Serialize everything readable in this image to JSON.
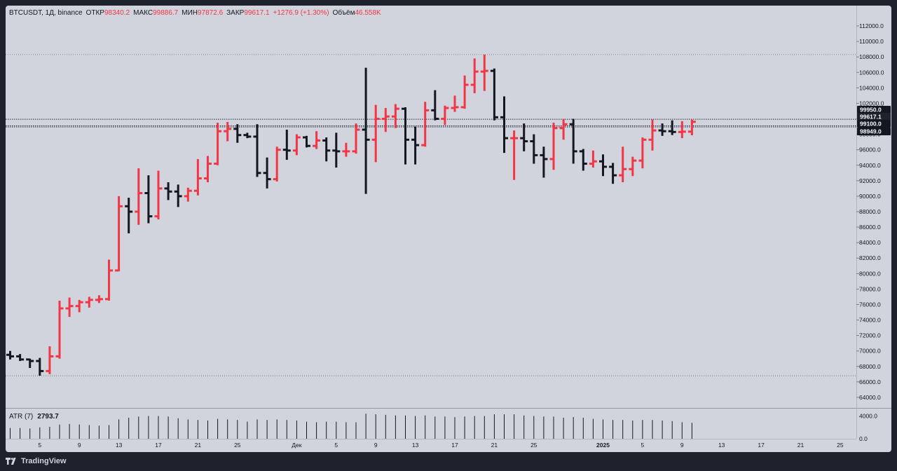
{
  "legend": {
    "symbol": "BTCUSDT, 1Д, binance",
    "open_label": "ОТКР",
    "open": "98340.2",
    "high_label": "МАКС",
    "high": "99886.7",
    "low_label": "МИН",
    "low": "97872.6",
    "close_label": "ЗАКР",
    "close": "99617.1",
    "change": "+1276.9 (+1.30%)",
    "volume_label": "Объём",
    "volume": "46.558K"
  },
  "atr": {
    "label": "ATR (7)",
    "value": "2793.7"
  },
  "footer": {
    "brand": "TradingView",
    "logo_icon": "tradingview-logo-icon"
  },
  "colors": {
    "up": "#f23645",
    "down": "#131722",
    "bg": "#d1d4dc",
    "frame": "#1e222d"
  },
  "price_labels": [
    {
      "text": "99950.0",
      "value": 99950
    },
    {
      "text": "99617.1",
      "value": 99617.1
    },
    {
      "text": "99100.0",
      "value": 99100
    },
    {
      "text": "98949.0",
      "value": 98949
    }
  ],
  "chart_data": {
    "type": "ohlc",
    "ylim": [
      63000,
      113000
    ],
    "y_ticks": [
      "64000.0",
      "66000.0",
      "68000.0",
      "70000.0",
      "72000.0",
      "74000.0",
      "76000.0",
      "78000.0",
      "80000.0",
      "82000.0",
      "84000.0",
      "86000.0",
      "88000.0",
      "90000.0",
      "92000.0",
      "94000.0",
      "96000.0",
      "98000.0",
      "100000.0",
      "102000.0",
      "104000.0",
      "106000.0",
      "108000.0",
      "110000.0",
      "112000.0"
    ],
    "x_ticks": [
      {
        "label": "5",
        "index": 3
      },
      {
        "label": "9",
        "index": 7
      },
      {
        "label": "13",
        "index": 11
      },
      {
        "label": "17",
        "index": 15
      },
      {
        "label": "21",
        "index": 19
      },
      {
        "label": "25",
        "index": 23
      },
      {
        "label": "Дек",
        "index": 29
      },
      {
        "label": "5",
        "index": 33
      },
      {
        "label": "9",
        "index": 37
      },
      {
        "label": "13",
        "index": 41
      },
      {
        "label": "17",
        "index": 45
      },
      {
        "label": "21",
        "index": 49
      },
      {
        "label": "25",
        "index": 53
      },
      {
        "label": "2025",
        "index": 60
      },
      {
        "label": "5",
        "index": 64
      },
      {
        "label": "9",
        "index": 68
      },
      {
        "label": "13",
        "index": 72
      },
      {
        "label": "17",
        "index": 76
      },
      {
        "label": "21",
        "index": 80
      },
      {
        "label": "25",
        "index": 84
      }
    ],
    "hlines": [
      108300,
      99950,
      99100,
      98949,
      66800
    ],
    "candles": [
      [
        69500,
        70000,
        68900,
        69300
      ],
      [
        69300,
        69600,
        68700,
        68900
      ],
      [
        68900,
        69000,
        67800,
        68700
      ],
      [
        68700,
        69100,
        66800,
        67400
      ],
      [
        67400,
        70600,
        67000,
        69300
      ],
      [
        69300,
        76500,
        69000,
        75500
      ],
      [
        75500,
        76900,
        74400,
        75800
      ],
      [
        75800,
        76600,
        75000,
        76300
      ],
      [
        76300,
        77000,
        75600,
        76600
      ],
      [
        76600,
        77200,
        76200,
        76700
      ],
      [
        76700,
        81800,
        76500,
        80400
      ],
      [
        80400,
        90000,
        80300,
        88700
      ],
      [
        88700,
        89800,
        85200,
        88000
      ],
      [
        88000,
        93600,
        86300,
        90400
      ],
      [
        90400,
        92700,
        86500,
        87400
      ],
      [
        87400,
        93300,
        87000,
        91000
      ],
      [
        91000,
        91800,
        89500,
        90600
      ],
      [
        90600,
        91500,
        88600,
        90000
      ],
      [
        90000,
        91100,
        89300,
        90700
      ],
      [
        90700,
        94800,
        90100,
        92300
      ],
      [
        92300,
        95200,
        91800,
        94200
      ],
      [
        94200,
        99500,
        94000,
        98400
      ],
      [
        98400,
        99600,
        97100,
        98700
      ],
      [
        98700,
        99300,
        96900,
        97900
      ],
      [
        97900,
        98200,
        97500,
        97700
      ],
      [
        97700,
        99300,
        92500,
        93000
      ],
      [
        93000,
        95000,
        91000,
        92200
      ],
      [
        92200,
        96400,
        91900,
        96000
      ],
      [
        96000,
        98600,
        94700,
        95900
      ],
      [
        95900,
        98000,
        95300,
        97600
      ],
      [
        97600,
        97800,
        96300,
        96500
      ],
      [
        96500,
        98400,
        96100,
        97200
      ],
      [
        97200,
        97600,
        94500,
        95900
      ],
      [
        95900,
        98200,
        93700,
        95800
      ],
      [
        95800,
        96900,
        95100,
        95800
      ],
      [
        95800,
        99400,
        95500,
        98600
      ],
      [
        98600,
        106600,
        90300,
        97300
      ],
      [
        97300,
        101800,
        94400,
        100000
      ],
      [
        100000,
        101400,
        98300,
        100300
      ],
      [
        100300,
        101900,
        98800,
        101300
      ],
      [
        101300,
        101500,
        94100,
        97300
      ],
      [
        97300,
        99000,
        94100,
        96600
      ],
      [
        96600,
        102200,
        96400,
        101100
      ],
      [
        101100,
        103700,
        99800,
        100000
      ],
      [
        100000,
        101700,
        99200,
        101400
      ],
      [
        101400,
        103000,
        100900,
        101500
      ],
      [
        101500,
        105600,
        101300,
        104400
      ],
      [
        104400,
        107800,
        103300,
        106100
      ],
      [
        106100,
        108300,
        103600,
        106200
      ],
      [
        106200,
        106500,
        99800,
        100200
      ],
      [
        100200,
        102900,
        95600,
        97500
      ],
      [
        97500,
        98500,
        92100,
        97500
      ],
      [
        97500,
        99400,
        95800,
        97100
      ],
      [
        97100,
        98000,
        94200,
        95300
      ],
      [
        95300,
        96400,
        92400,
        94800
      ],
      [
        94800,
        99500,
        93400,
        98800
      ],
      [
        98800,
        100000,
        97300,
        99300
      ],
      [
        99300,
        100000,
        94200,
        95800
      ],
      [
        95800,
        96100,
        93300,
        94200
      ],
      [
        94200,
        95900,
        93700,
        94500
      ],
      [
        94500,
        95400,
        92600,
        93800
      ],
      [
        93800,
        94300,
        91600,
        92700
      ],
      [
        92700,
        96400,
        91800,
        93500
      ],
      [
        93500,
        95100,
        92600,
        94600
      ],
      [
        94600,
        97600,
        93600,
        97300
      ],
      [
        97300,
        99900,
        95900,
        98500
      ],
      [
        98500,
        99400,
        97800,
        98400
      ],
      [
        98400,
        99800,
        97900,
        98300
      ],
      [
        98300,
        99700,
        97500,
        98340
      ],
      [
        98340,
        99887,
        97873,
        99617
      ]
    ],
    "atr_ylim": [
      0,
      4800
    ],
    "atr_ticks": [
      "4000.0",
      "0.0"
    ],
    "atr_values": [
      1900,
      1900,
      1800,
      2000,
      2100,
      2500,
      2600,
      2500,
      2400,
      2300,
      2400,
      3400,
      3700,
      3900,
      4000,
      4000,
      3900,
      3600,
      3400,
      3300,
      3200,
      3500,
      3400,
      3300,
      3000,
      3400,
      3300,
      3400,
      3300,
      3200,
      3000,
      2900,
      3000,
      3000,
      2900,
      2900,
      4400,
      4300,
      4200,
      4100,
      4100,
      4000,
      4100,
      3900,
      3900,
      3800,
      3900,
      4000,
      4000,
      4300,
      4300,
      4300,
      4100,
      4000,
      3900,
      3900,
      3700,
      3800,
      3700,
      3500,
      3400,
      3300,
      3300,
      3200,
      3300,
      3300,
      3200,
      3100,
      2900,
      2800
    ]
  }
}
